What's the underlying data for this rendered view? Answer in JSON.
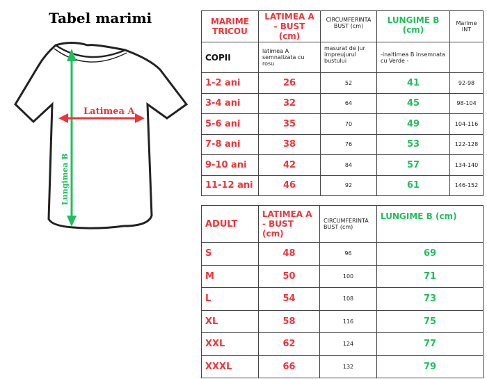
{
  "title": "Tabel marimi",
  "diagram": {
    "width_label": "Latimea A",
    "length_label": "Lungimea B",
    "colors": {
      "width": "#f0343a",
      "length": "#1fbf5c"
    }
  },
  "kids": {
    "headers": [
      "MARIME TRICOU",
      "LATIMEA A - BUST (cm)",
      "CIRCUMFERINTA BUST (cm)",
      "LUNGIME B (cm)",
      "Marime INT"
    ],
    "notes": [
      "COPII",
      "latimea A semnalizata cu rosu",
      "masurat de jur impreujurul bustului",
      "-inaltimea B insemnata cu Verde -",
      ""
    ],
    "rows": [
      [
        "1-2 ani",
        "26",
        "52",
        "41",
        "92-98"
      ],
      [
        "3-4 ani",
        "32",
        "64",
        "45",
        "98-104"
      ],
      [
        "5-6 ani",
        "35",
        "70",
        "49",
        "104-116"
      ],
      [
        "7-8 ani",
        "38",
        "76",
        "53",
        "122-128"
      ],
      [
        "9-10 ani",
        "42",
        "84",
        "57",
        "134-140"
      ],
      [
        "11-12 ani",
        "46",
        "92",
        "61",
        "146-152"
      ]
    ]
  },
  "adult": {
    "headers": [
      "ADULT",
      "LATIMEA A - BUST (cm)",
      "CIRCUMFERINTA BUST (cm)",
      "LUNGIME B (cm)"
    ],
    "rows": [
      [
        "S",
        "48",
        "96",
        "69"
      ],
      [
        "M",
        "50",
        "100",
        "71"
      ],
      [
        "L",
        "54",
        "108",
        "73"
      ],
      [
        "XL",
        "58",
        "116",
        "75"
      ],
      [
        "XXL",
        "62",
        "124",
        "77"
      ],
      [
        "XXXL",
        "66",
        "132",
        "79"
      ]
    ]
  }
}
